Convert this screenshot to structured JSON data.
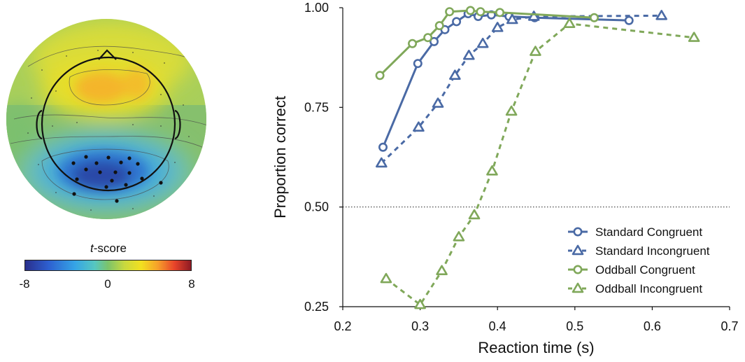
{
  "topoplot": {
    "colorbar_label_prefix": "t",
    "colorbar_label_suffix": "-score",
    "colorbar_ticks": [
      "-8",
      "0",
      "8"
    ],
    "colorbar_range": [
      -8,
      8
    ]
  },
  "chart_data": {
    "type": "line",
    "title": "",
    "xlabel": "Reaction time (s)",
    "ylabel": "Proportion correct",
    "xlim": [
      0.2,
      0.7
    ],
    "ylim": [
      0.25,
      1.0
    ],
    "xticks": [
      0.2,
      0.3,
      0.4,
      0.5,
      0.6,
      0.7
    ],
    "xtick_labels": [
      "0.2",
      "0.3",
      "0.4",
      "0.5",
      "0.6",
      "0.7"
    ],
    "yticks": [
      0.25,
      0.5,
      0.75,
      1.0
    ],
    "ytick_labels": [
      "0.25",
      "0.50",
      "0.75",
      "1.00"
    ],
    "reference_line": {
      "y": 0.5,
      "style": "dotted"
    },
    "grid": false,
    "legend_position": "bottom-right",
    "series": [
      {
        "name": "Standard Congruent",
        "color": "#4a6aa5",
        "marker": "circle",
        "line": "solid",
        "x": [
          0.252,
          0.297,
          0.318,
          0.332,
          0.347,
          0.362,
          0.375,
          0.392,
          0.415,
          0.448,
          0.57
        ],
        "y": [
          0.65,
          0.86,
          0.915,
          0.945,
          0.965,
          0.985,
          0.978,
          0.982,
          0.978,
          0.975,
          0.968
        ]
      },
      {
        "name": "Standard Incongruent",
        "color": "#4a6aa5",
        "marker": "triangle",
        "line": "dashed",
        "x": [
          0.25,
          0.298,
          0.323,
          0.345,
          0.363,
          0.381,
          0.4,
          0.419,
          0.447,
          0.612
        ],
        "y": [
          0.61,
          0.7,
          0.76,
          0.83,
          0.88,
          0.91,
          0.95,
          0.97,
          0.978,
          0.98
        ]
      },
      {
        "name": "Oddball Congruent",
        "color": "#80a85a",
        "marker": "circle",
        "line": "solid",
        "x": [
          0.248,
          0.29,
          0.31,
          0.325,
          0.338,
          0.365,
          0.378,
          0.403,
          0.525
        ],
        "y": [
          0.83,
          0.91,
          0.925,
          0.955,
          0.99,
          0.993,
          0.99,
          0.988,
          0.975
        ]
      },
      {
        "name": "Oddball Incongruent",
        "color": "#80a85a",
        "marker": "triangle",
        "line": "dashed",
        "x": [
          0.256,
          0.3,
          0.328,
          0.35,
          0.37,
          0.393,
          0.418,
          0.449,
          0.493,
          0.654
        ],
        "y": [
          0.32,
          0.255,
          0.34,
          0.425,
          0.48,
          0.59,
          0.74,
          0.89,
          0.96,
          0.925
        ]
      }
    ]
  }
}
